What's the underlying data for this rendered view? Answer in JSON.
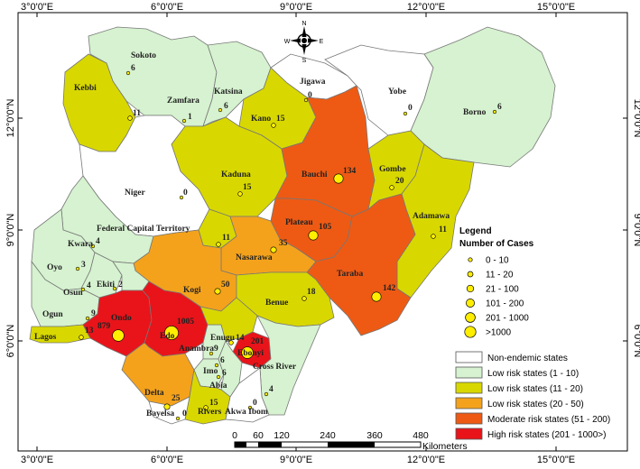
{
  "colors": {
    "non_endemic": "#ffffff",
    "low_1_10": "#d6f2d0",
    "low_11_20": "#d8d800",
    "low_20_50": "#f4a21c",
    "moderate": "#ee5a14",
    "high": "#e8141a",
    "marker": "#ffee00"
  },
  "axes": {
    "x_ticks": [
      "3°0'0\"E",
      "6°0'0\"E",
      "9°0'0\"E",
      "12°0'0\"E",
      "15°0'0\"E"
    ],
    "y_ticks": [
      "12°0'0\"N",
      "9°0'0\"N",
      "6°0'0\"N"
    ]
  },
  "compass": {
    "n": "N",
    "s": "S",
    "e": "E",
    "w": "W"
  },
  "states": [
    {
      "name": "Sokoto",
      "count": "6"
    },
    {
      "name": "Kebbi",
      "count": "11"
    },
    {
      "name": "Zamfara",
      "count": "1"
    },
    {
      "name": "Katsina",
      "count": "6"
    },
    {
      "name": "Jigawa",
      "count": "0"
    },
    {
      "name": "Yobe",
      "count": "0"
    },
    {
      "name": "Borno",
      "count": "6"
    },
    {
      "name": "Kano",
      "count": "15"
    },
    {
      "name": "Kaduna",
      "count": "15"
    },
    {
      "name": "Bauchi",
      "count": "134"
    },
    {
      "name": "Gombe",
      "count": "20"
    },
    {
      "name": "Niger",
      "count": "0"
    },
    {
      "name": "Federal Capital Territory",
      "count": "11"
    },
    {
      "name": "Plateau",
      "count": "105"
    },
    {
      "name": "Adamawa",
      "count": "11"
    },
    {
      "name": "Kwara",
      "count": "4"
    },
    {
      "name": "Nasarawa",
      "count": "35"
    },
    {
      "name": "Oyo",
      "count": "3"
    },
    {
      "name": "Taraba",
      "count": "142"
    },
    {
      "name": "Kogi",
      "count": "50"
    },
    {
      "name": "Osun",
      "count": "4"
    },
    {
      "name": "Ekiti",
      "count": "2"
    },
    {
      "name": "Benue",
      "count": "18"
    },
    {
      "name": "Ogun",
      "count": "9"
    },
    {
      "name": "Ondo",
      "count": "879"
    },
    {
      "name": "Edo",
      "count": "1005"
    },
    {
      "name": "Lagos",
      "count": "13"
    },
    {
      "name": "Enugu",
      "count": "14"
    },
    {
      "name": "Anambra",
      "count": "9"
    },
    {
      "name": "Ebonyi",
      "count": "201"
    },
    {
      "name": "Imo",
      "count": "6"
    },
    {
      "name": "Cross River",
      "count": "4"
    },
    {
      "name": "Abia",
      "count": "6"
    },
    {
      "name": "Delta",
      "count": "25"
    },
    {
      "name": "Bayelsa",
      "count": "0"
    },
    {
      "name": "Rivers",
      "count": "15"
    },
    {
      "name": "Akwa Ibom",
      "count": "0"
    }
  ],
  "legend": {
    "title": "Legend",
    "subtitle": "Number of Cases",
    "sizes": [
      "0 - 10",
      "11 - 20",
      "21 - 100",
      "101 - 200",
      "201 - 1000",
      ">1000"
    ],
    "classes": [
      {
        "label": "Non-endemic states",
        "color": "#ffffff"
      },
      {
        "label": "Low risk states (1 - 10)",
        "color": "#d6f2d0"
      },
      {
        "label": "Low risk states (11 - 20)",
        "color": "#d8d800"
      },
      {
        "label": "Low risk states (20 - 50)",
        "color": "#f4a21c"
      },
      {
        "label": "Moderate risk states (51 - 200)",
        "color": "#ee5a14"
      },
      {
        "label": "High risk states (201 - 1000>)",
        "color": "#e8141a"
      }
    ]
  },
  "scale_bar": {
    "ticks": [
      "0",
      "60",
      "120",
      "240",
      "360",
      "480"
    ],
    "unit": "Kilometers"
  }
}
